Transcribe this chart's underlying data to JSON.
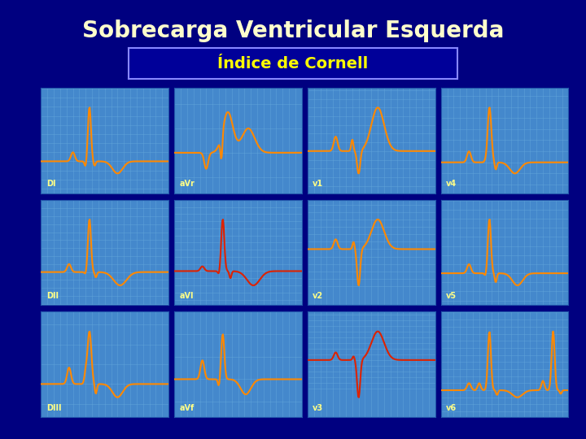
{
  "title": "Sobrecarga Ventricular Esquerda",
  "subtitle": "Índice de Cornell",
  "bg_color": "#000080",
  "grid_bg": "#4488cc",
  "grid_line_color": "#66aadd",
  "title_color": "#ffffcc",
  "subtitle_color": "#ffff00",
  "subtitle_box_color": "#000099",
  "ecg_color_orange": "#ff8800",
  "ecg_color_red": "#dd2200",
  "labels": [
    [
      "DI",
      "aVr",
      "v1",
      "v4"
    ],
    [
      "DII",
      "aVl",
      "v2",
      "v5"
    ],
    [
      "DIII",
      "aVf",
      "v3",
      "v6"
    ]
  ]
}
